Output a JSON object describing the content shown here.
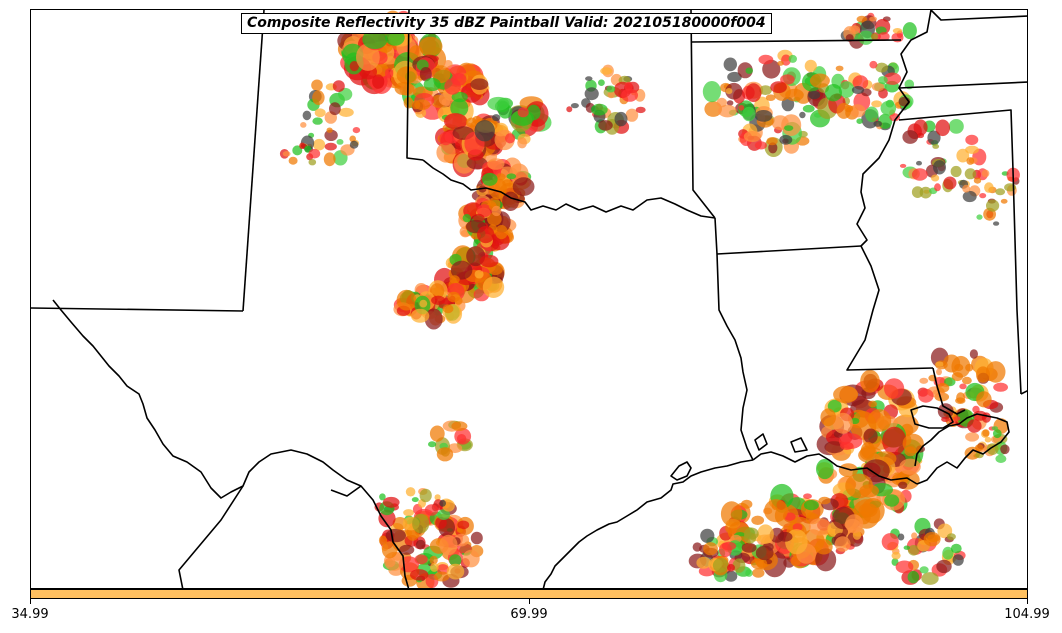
{
  "title": "Composite Reflectivity 35 dBZ Paintball Valid: 202105180000f004",
  "colorbar": {
    "color": "#ffc060",
    "ticks": [
      "34.99",
      "69.99",
      "104.99"
    ]
  },
  "map": {
    "boundaries": "US state borders and Gulf of Mexico coastline",
    "region": "Texas, Oklahoma, Louisiana, Arkansas, Mississippi",
    "paintball_colors": [
      "#e01010",
      "#ff3030",
      "#f07800",
      "#ff9040",
      "#ffb030",
      "#20c020",
      "#40d040",
      "#a0a020",
      "#8b1a1a",
      "#404040"
    ]
  }
}
